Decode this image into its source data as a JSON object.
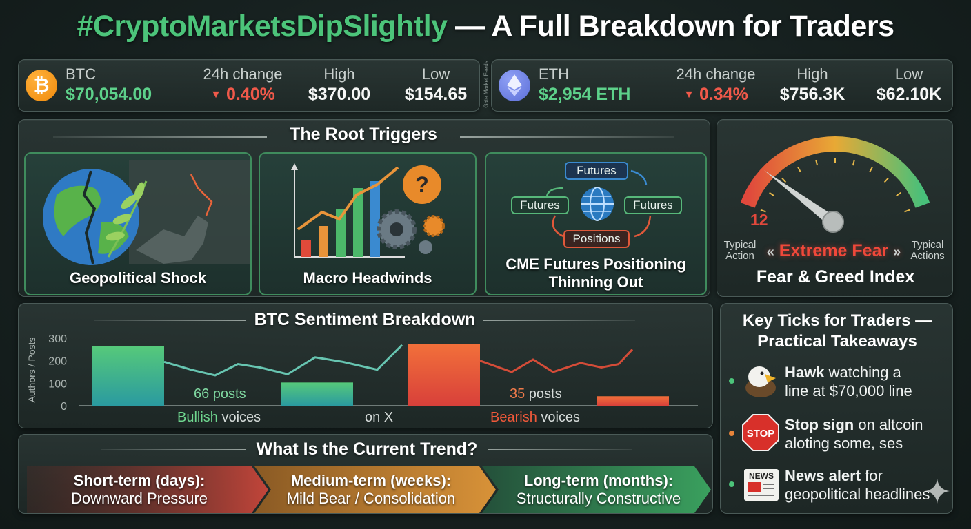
{
  "title": {
    "hashtag": "#CryptoMarketsDipSlightly",
    "rest": " — A Full Breakdown for Traders"
  },
  "btc": {
    "symbol": "BTC",
    "price": "$70,054.00",
    "change_label": "24h change",
    "change": "0.40%",
    "high_label": "High",
    "high": "$370.00",
    "low_label": "Low",
    "low": "$154.65"
  },
  "divider_text": "Gate Market Feeds",
  "eth": {
    "symbol": "ETH",
    "price": "$2,954 ETH",
    "change_label": "24h change",
    "change": "0.34%",
    "high_label": "High",
    "high": "$756.3K",
    "low_label": "Low",
    "low": "$62.10K"
  },
  "triggers": {
    "heading": "The Root Triggers",
    "items": [
      {
        "label": "Geopolitical Shock"
      },
      {
        "label": "Macro Headwinds"
      },
      {
        "label": "CME Futures Positioning Thinning Out"
      }
    ],
    "cme_boxes": {
      "top": "Futures",
      "left": "Futures",
      "right": "Futures",
      "bottom": "Positions"
    }
  },
  "fear_greed": {
    "value": 12,
    "value_text": "12",
    "state": "Extreme Fear",
    "left_label": "Typical Action",
    "right_label": "Typical Actions",
    "title": "Fear & Greed Index",
    "colors": {
      "fear": "#e0483c",
      "neutral": "#e8a935",
      "greed": "#48c07a"
    }
  },
  "sentiment": {
    "heading": "BTC Sentiment Breakdown",
    "bullish_posts": "66 posts",
    "bearish_count": "35",
    "bearish_posts_suffix": " posts",
    "bullish_word": "Bullish",
    "bearish_word": "Bearish",
    "voices": " voices",
    "middle": "on X"
  },
  "chart_data": {
    "type": "bar",
    "ylabel": "Authors / Posts",
    "ylim": [
      0,
      300
    ],
    "yticks": [
      "300",
      "200",
      "100",
      "0"
    ],
    "bars": [
      {
        "name": "bullish-bar-1",
        "value": 265,
        "tone": "bull"
      },
      {
        "name": "bullish-bar-2",
        "value": 103,
        "tone": "bull"
      },
      {
        "name": "bearish-bar-1",
        "value": 275,
        "tone": "bear"
      },
      {
        "name": "bearish-bar-2",
        "value": 42,
        "tone": "bear"
      }
    ],
    "line_bull": [
      195,
      160,
      135,
      185,
      170,
      140,
      215,
      195,
      160,
      270
    ],
    "line_bear": [
      200,
      150,
      205,
      150,
      190,
      170,
      185,
      250
    ]
  },
  "trend": {
    "heading": "What Is the Current Trend?",
    "items": [
      {
        "term": "Short-term (days):",
        "desc": "Downward Pressure"
      },
      {
        "term": "Medium-term (weeks):",
        "desc": "Mild Bear / Consolidation"
      },
      {
        "term": "Long-term (months):",
        "desc": "Structurally Constructive"
      }
    ]
  },
  "takeaways": {
    "heading_1": "Key Ticks for Traders —",
    "heading_2": "Practical Takeaways",
    "items": [
      {
        "bold": "Hawk",
        "rest_1": " watching a",
        "rest_2": "line at $70,000 line"
      },
      {
        "bold": "Stop sign",
        "rest_1": " on altcoin",
        "rest_2": "aloting some, ses"
      },
      {
        "bold": "News alert",
        "rest_1": " for",
        "rest_2": "geopolitical headlines"
      }
    ],
    "stop_text": "STOP",
    "news_text": "NEWS"
  }
}
